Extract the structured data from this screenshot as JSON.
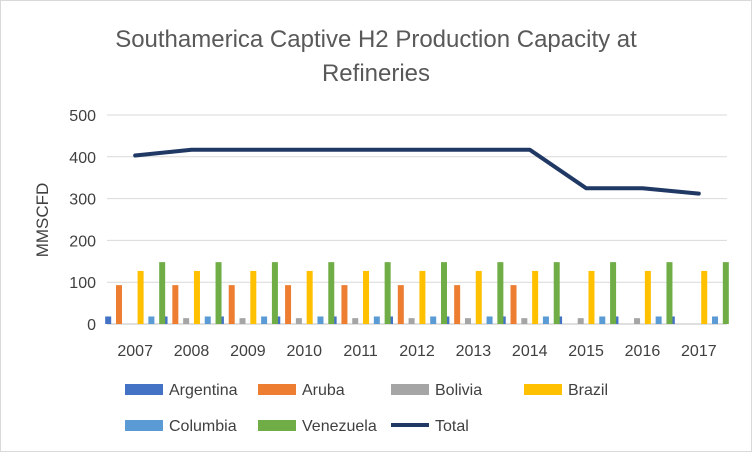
{
  "chart_data": {
    "type": "bar",
    "title_line1": "Southamerica Captive H2 Production Capacity at",
    "title_line2": "Refineries",
    "xlabel": "",
    "ylabel": "MMSCFD",
    "ylim": [
      0,
      500
    ],
    "yticks": [
      0,
      100,
      200,
      300,
      400,
      500
    ],
    "grid": true,
    "legend_position": "bottom",
    "categories": [
      "2007",
      "2008",
      "2009",
      "2010",
      "2011",
      "2012",
      "2013",
      "2014",
      "2015",
      "2016",
      "2017"
    ],
    "series": [
      {
        "name": "Argentina",
        "type": "bar",
        "color": "#4472C4",
        "values": [
          18,
          18,
          18,
          18,
          18,
          18,
          18,
          18,
          18,
          18,
          18
        ]
      },
      {
        "name": "Aruba",
        "type": "bar",
        "color": "#ED7D31",
        "values": [
          93,
          93,
          93,
          93,
          93,
          93,
          93,
          93,
          0,
          0,
          0
        ]
      },
      {
        "name": "Bolivia",
        "type": "bar",
        "color": "#A5A5A5",
        "values": [
          0,
          14,
          14,
          14,
          14,
          14,
          14,
          14,
          14,
          14,
          0
        ]
      },
      {
        "name": "Brazil",
        "type": "bar",
        "color": "#FFC000",
        "values": [
          127,
          127,
          127,
          127,
          127,
          127,
          127,
          127,
          127,
          127,
          127
        ]
      },
      {
        "name": "Columbia",
        "type": "bar",
        "color": "#5B9BD5",
        "values": [
          18,
          18,
          18,
          18,
          18,
          18,
          18,
          18,
          18,
          18,
          18
        ]
      },
      {
        "name": "Venezuela",
        "type": "bar",
        "color": "#70AD47",
        "values": [
          148,
          148,
          148,
          148,
          148,
          148,
          148,
          148,
          148,
          148,
          148
        ]
      },
      {
        "name": "Total",
        "type": "line",
        "color": "#203864",
        "values": [
          403,
          417,
          417,
          417,
          417,
          417,
          417,
          417,
          325,
          325,
          312
        ]
      }
    ]
  }
}
